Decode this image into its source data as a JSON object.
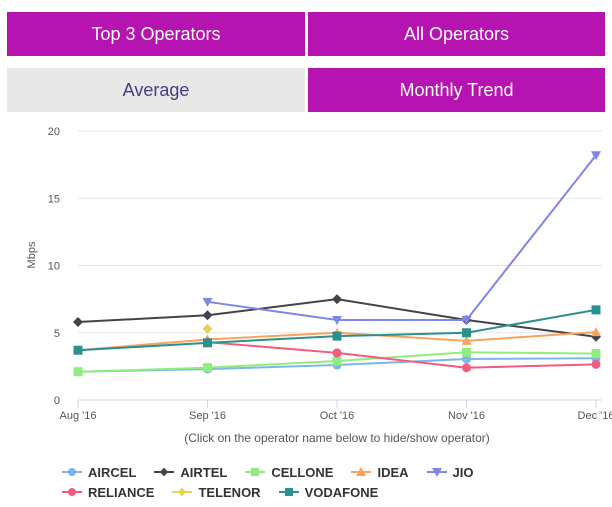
{
  "tabs": {
    "top3": "Top 3 Operators",
    "all": "All Operators",
    "average": "Average",
    "monthly": "Monthly Trend"
  },
  "hint": "(Click on the operator name below to hide/show operator)",
  "chart_data": {
    "type": "line",
    "title": "",
    "xlabel": "",
    "ylabel": "Mbps",
    "ylim": [
      0,
      20
    ],
    "yticks": [
      0,
      5,
      10,
      15,
      20
    ],
    "grid": true,
    "legend_position": "bottom",
    "categories": [
      "Aug '16",
      "Sep '16",
      "Oct '16",
      "Nov '16",
      "Dec '16"
    ],
    "series": [
      {
        "name": "AIRCEL",
        "color": "#7cb5ec",
        "marker": "circle",
        "values": [
          2.1,
          2.3,
          2.6,
          3.05,
          3.1
        ]
      },
      {
        "name": "AIRTEL",
        "color": "#434348",
        "marker": "diamond",
        "values": [
          5.8,
          6.3,
          7.5,
          5.95,
          4.7
        ]
      },
      {
        "name": "CELLONE",
        "color": "#90ed7d",
        "marker": "square",
        "values": [
          2.1,
          2.4,
          2.9,
          3.55,
          3.45
        ]
      },
      {
        "name": "IDEA",
        "color": "#f7a35c",
        "marker": "triangle",
        "values": [
          3.7,
          4.5,
          5.0,
          4.4,
          5.05
        ]
      },
      {
        "name": "JIO",
        "color": "#8085e9",
        "marker": "triangle-down",
        "values": [
          null,
          7.3,
          5.95,
          5.95,
          18.2
        ]
      },
      {
        "name": "RELIANCE",
        "color": "#f15c80",
        "marker": "circle",
        "values": [
          null,
          4.3,
          3.5,
          2.4,
          2.65
        ]
      },
      {
        "name": "TELENOR",
        "color": "#e4d354",
        "marker": "diamond",
        "values": [
          null,
          5.3,
          null,
          null,
          null
        ]
      },
      {
        "name": "VODAFONE",
        "color": "#2b908f",
        "marker": "square",
        "values": [
          3.7,
          4.25,
          4.75,
          5.0,
          6.7
        ]
      }
    ]
  }
}
